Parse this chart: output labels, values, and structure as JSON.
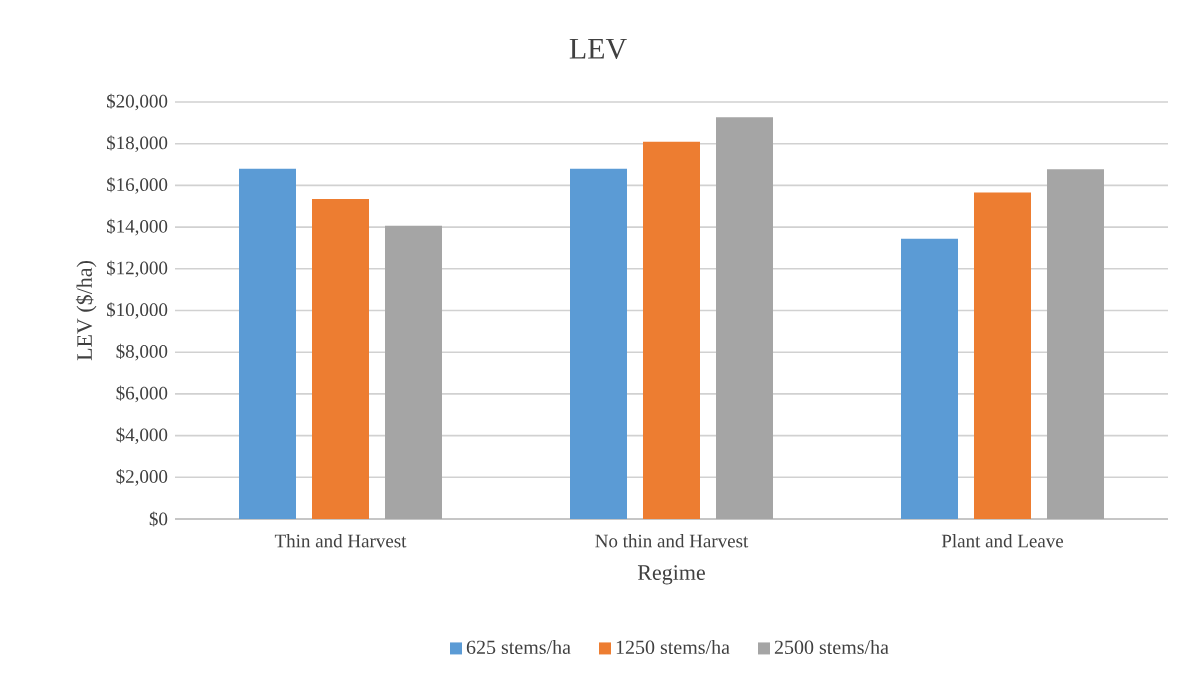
{
  "chart_data": {
    "type": "bar",
    "title": "LEV",
    "xlabel": "Regime",
    "ylabel": "LEV ($/ha)",
    "categories": [
      "Thin and Harvest",
      "No thin and Harvest",
      "Plant and Leave"
    ],
    "series": [
      {
        "name": "625 stems/ha",
        "color": "#5b9bd5",
        "values": [
          16800,
          16800,
          13440
        ]
      },
      {
        "name": "1250 stems/ha",
        "color": "#ed7d31",
        "values": [
          15350,
          18090,
          15660
        ]
      },
      {
        "name": "2500 stems/ha",
        "color": "#a5a5a5",
        "values": [
          14070,
          19270,
          16780
        ]
      }
    ],
    "ylim": [
      0,
      20000
    ],
    "yticks": [
      {
        "value": 0,
        "label": "$0"
      },
      {
        "value": 2000,
        "label": "$2,000"
      },
      {
        "value": 4000,
        "label": "$4,000"
      },
      {
        "value": 6000,
        "label": "$6,000"
      },
      {
        "value": 8000,
        "label": "$8,000"
      },
      {
        "value": 10000,
        "label": "$10,000"
      },
      {
        "value": 12000,
        "label": "$12,000"
      },
      {
        "value": 14000,
        "label": "$14,000"
      },
      {
        "value": 16000,
        "label": "$16,000"
      },
      {
        "value": 18000,
        "label": "$18,000"
      },
      {
        "value": 20000,
        "label": "$20,000"
      }
    ],
    "grid": "y",
    "legend": "bottom"
  }
}
